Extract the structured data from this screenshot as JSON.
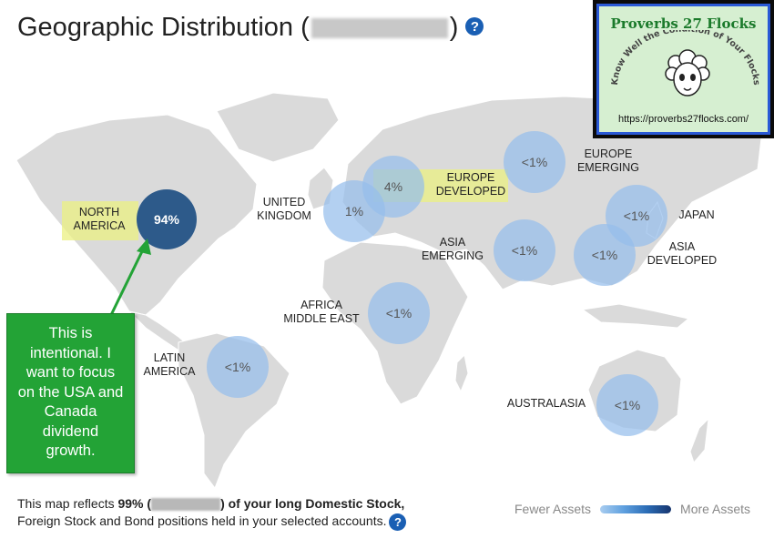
{
  "header": {
    "title": "Geographic Distribution (",
    "title_end": ")",
    "help_icon": "?"
  },
  "colors": {
    "land": "#dadada",
    "bubble": "#9fc3ea",
    "bubble_big": "#2d5a8a",
    "highlight": "#ebf082",
    "note": "#23a336",
    "help": "#1a5fb4"
  },
  "regions": {
    "north_america": {
      "label_line1": "NORTH",
      "label_line2": "AMERICA",
      "value": "94%"
    },
    "united_kingdom": {
      "label_line1": "UNITED",
      "label_line2": "KINGDOM",
      "value": "1%"
    },
    "europe_developed": {
      "label_line1": "EUROPE",
      "label_line2": "DEVELOPED",
      "value": "4%"
    },
    "europe_emerging": {
      "label_line1": "EUROPE",
      "label_line2": "EMERGING",
      "value": "<1%"
    },
    "japan": {
      "label_line1": "JAPAN",
      "value": "<1%"
    },
    "asia_emerging": {
      "label_line1": "ASIA",
      "label_line2": "EMERGING",
      "value": "<1%"
    },
    "asia_developed": {
      "label_line1": "ASIA",
      "label_line2": "DEVELOPED",
      "value": "<1%"
    },
    "africa_middle_east": {
      "label_line1": "AFRICA",
      "label_line2": "MIDDLE EAST",
      "value": "<1%"
    },
    "latin_america": {
      "label_line1": "LATIN",
      "label_line2": "AMERICA",
      "value": "<1%"
    },
    "australasia": {
      "label_line1": "AUSTRALASIA",
      "value": "<1%"
    }
  },
  "annotation": {
    "lines": [
      "This is",
      "intentional. I",
      "want to focus",
      "on the USA and",
      "Canada",
      "dividend",
      "growth."
    ]
  },
  "footer": {
    "text_a": "This map reflects ",
    "pct": "99% (",
    "text_b": ") of your long Domestic Stock,",
    "line2": "Foreign Stock and Bond positions held in your selected accounts.",
    "help_icon": "?"
  },
  "legend": {
    "low_label": "Fewer Assets",
    "high_label": "More Assets"
  },
  "ad": {
    "title": "Proverbs 27 Flocks",
    "tagline": "Know Well the Condition of Your Flocks",
    "url": "https://proverbs27flocks.com/",
    "icon": "sheep-icon"
  }
}
